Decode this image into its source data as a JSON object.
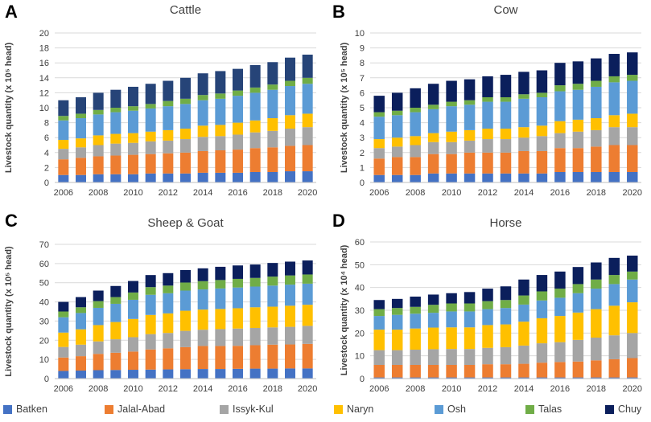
{
  "colors": {
    "Batken": "#4472c4",
    "Jalal-Abad": "#ed7d31",
    "Issyk-Kul": "#a5a5a5",
    "Naryn": "#ffc000",
    "Osh": "#5b9bd5",
    "Talas": "#70ad47",
    "Chuy": "#0b1f5c",
    "CattleChuy": "#264478"
  },
  "legend": {
    "items": [
      "Batken",
      "Jalal-Abad",
      "Issyk-Kul",
      "Naryn",
      "Osh",
      "Talas",
      "Chuy"
    ]
  },
  "chart_data": [
    {
      "panel": "A",
      "type": "bar",
      "stacked": true,
      "title": "Cattle",
      "ylabel": "Livestock quantity (x 10⁵ head)",
      "ylim": [
        0,
        20
      ],
      "yticks": [
        0,
        2,
        4,
        6,
        8,
        10,
        12,
        14,
        16,
        18,
        20
      ],
      "xtick_labels": [
        "2006",
        "2008",
        "2010",
        "2012",
        "2014",
        "2016",
        "2018",
        "2020"
      ],
      "categories": [
        "2006",
        "2007",
        "2008",
        "2009",
        "2010",
        "2011",
        "2012",
        "2013",
        "2014",
        "2015",
        "2016",
        "2017",
        "2018",
        "2019",
        "2020"
      ],
      "series": [
        {
          "name": "Batken",
          "values": [
            1.0,
            1.0,
            1.1,
            1.1,
            1.1,
            1.2,
            1.2,
            1.2,
            1.3,
            1.3,
            1.3,
            1.4,
            1.4,
            1.5,
            1.5
          ]
        },
        {
          "name": "Jalal-Abad",
          "values": [
            2.1,
            2.3,
            2.4,
            2.5,
            2.6,
            2.6,
            2.7,
            2.8,
            2.9,
            3.0,
            3.1,
            3.2,
            3.3,
            3.4,
            3.5
          ]
        },
        {
          "name": "Issyk-Kul",
          "values": [
            1.4,
            1.4,
            1.5,
            1.6,
            1.6,
            1.7,
            1.7,
            1.8,
            1.9,
            1.9,
            2.0,
            2.1,
            2.2,
            2.3,
            2.4
          ]
        },
        {
          "name": "Naryn",
          "values": [
            1.2,
            1.2,
            1.3,
            1.3,
            1.3,
            1.3,
            1.4,
            1.4,
            1.5,
            1.5,
            1.6,
            1.6,
            1.7,
            1.8,
            1.8
          ]
        },
        {
          "name": "Osh",
          "values": [
            2.6,
            2.7,
            2.8,
            2.9,
            3.0,
            3.1,
            3.2,
            3.3,
            3.4,
            3.5,
            3.6,
            3.7,
            3.8,
            3.9,
            4.0
          ]
        },
        {
          "name": "Talas",
          "values": [
            0.6,
            0.6,
            0.6,
            0.6,
            0.6,
            0.6,
            0.7,
            0.7,
            0.7,
            0.7,
            0.7,
            0.7,
            0.7,
            0.7,
            0.8
          ]
        },
        {
          "name": "Chuy",
          "values": [
            2.1,
            2.2,
            2.3,
            2.4,
            2.6,
            2.7,
            2.7,
            2.8,
            2.9,
            3.0,
            2.9,
            3.0,
            3.0,
            3.1,
            3.1
          ]
        }
      ]
    },
    {
      "panel": "B",
      "type": "bar",
      "stacked": true,
      "title": "Cow",
      "ylabel": "Livestock quantity (x 10⁵ head)",
      "ylim": [
        0,
        10
      ],
      "yticks": [
        0,
        1,
        2,
        3,
        4,
        5,
        6,
        7,
        8,
        9,
        10
      ],
      "xtick_labels": [
        "2006",
        "2008",
        "2010",
        "2012",
        "2014",
        "2016",
        "2018",
        "2020"
      ],
      "categories": [
        "2006",
        "2007",
        "2008",
        "2009",
        "2010",
        "2011",
        "2012",
        "2013",
        "2014",
        "2015",
        "2016",
        "2017",
        "2018",
        "2019",
        "2020"
      ],
      "series": [
        {
          "name": "Batken",
          "values": [
            0.5,
            0.5,
            0.5,
            0.6,
            0.6,
            0.6,
            0.6,
            0.6,
            0.6,
            0.6,
            0.7,
            0.7,
            0.7,
            0.7,
            0.7
          ]
        },
        {
          "name": "Jalal-Abad",
          "values": [
            1.1,
            1.2,
            1.2,
            1.3,
            1.3,
            1.4,
            1.4,
            1.4,
            1.5,
            1.5,
            1.6,
            1.6,
            1.7,
            1.8,
            1.8
          ]
        },
        {
          "name": "Issyk-Kul",
          "values": [
            0.7,
            0.7,
            0.8,
            0.8,
            0.8,
            0.8,
            0.9,
            0.9,
            0.9,
            1.0,
            1.0,
            1.1,
            1.1,
            1.2,
            1.2
          ]
        },
        {
          "name": "Naryn",
          "values": [
            0.6,
            0.6,
            0.6,
            0.6,
            0.7,
            0.7,
            0.7,
            0.7,
            0.7,
            0.7,
            0.8,
            0.8,
            0.8,
            0.8,
            0.9
          ]
        },
        {
          "name": "Osh",
          "values": [
            1.5,
            1.5,
            1.6,
            1.6,
            1.7,
            1.7,
            1.8,
            1.8,
            1.9,
            1.9,
            2.0,
            2.0,
            2.1,
            2.2,
            2.2
          ]
        },
        {
          "name": "Talas",
          "values": [
            0.3,
            0.3,
            0.3,
            0.3,
            0.3,
            0.3,
            0.3,
            0.3,
            0.3,
            0.3,
            0.4,
            0.4,
            0.4,
            0.4,
            0.4
          ]
        },
        {
          "name": "Chuy",
          "values": [
            1.1,
            1.2,
            1.3,
            1.4,
            1.4,
            1.4,
            1.4,
            1.5,
            1.5,
            1.5,
            1.5,
            1.5,
            1.5,
            1.5,
            1.5
          ]
        }
      ]
    },
    {
      "panel": "C",
      "type": "bar",
      "stacked": true,
      "title": "Sheep & Goat",
      "ylabel": "Livestock quantity (x 10⁵ head)",
      "ylim": [
        0,
        70
      ],
      "yticks": [
        0,
        10,
        20,
        30,
        40,
        50,
        60,
        70
      ],
      "xtick_labels": [
        "2006",
        "2008",
        "2010",
        "2012",
        "2014",
        "2016",
        "2018",
        "2020"
      ],
      "categories": [
        "2006",
        "2007",
        "2008",
        "2009",
        "2010",
        "2011",
        "2012",
        "2013",
        "2014",
        "2015",
        "2016",
        "2017",
        "2018",
        "2019",
        "2020"
      ],
      "series": [
        {
          "name": "Batken",
          "values": [
            4.0,
            4.2,
            4.4,
            4.5,
            4.6,
            4.7,
            4.8,
            4.9,
            5.0,
            5.0,
            5.1,
            5.2,
            5.2,
            5.3,
            5.3
          ]
        },
        {
          "name": "Jalal-Abad",
          "values": [
            7.0,
            7.5,
            8.5,
            9.0,
            9.5,
            10.5,
            11.0,
            11.5,
            12.0,
            12.0,
            12.0,
            12.2,
            12.5,
            12.5,
            12.8
          ]
        },
        {
          "name": "Issyk-Kul",
          "values": [
            5.5,
            6.0,
            6.5,
            7.0,
            7.5,
            8.0,
            8.0,
            8.5,
            8.5,
            8.8,
            9.0,
            9.0,
            9.0,
            9.2,
            9.4
          ]
        },
        {
          "name": "Naryn",
          "values": [
            7.5,
            8.0,
            8.5,
            9.0,
            9.5,
            10.0,
            10.2,
            10.5,
            10.5,
            10.5,
            10.6,
            10.8,
            10.8,
            11.0,
            11.0
          ]
        },
        {
          "name": "Osh",
          "values": [
            8.0,
            8.5,
            9.0,
            9.5,
            10.0,
            10.5,
            10.5,
            10.5,
            10.5,
            10.7,
            10.8,
            10.8,
            11.0,
            11.0,
            11.0
          ]
        },
        {
          "name": "Talas",
          "values": [
            3.0,
            3.0,
            3.5,
            3.5,
            3.8,
            4.0,
            4.0,
            4.2,
            4.3,
            4.4,
            4.5,
            4.5,
            4.7,
            4.8,
            4.8
          ]
        },
        {
          "name": "Chuy",
          "values": [
            5.0,
            5.3,
            5.5,
            5.8,
            6.0,
            6.3,
            6.5,
            6.5,
            6.7,
            6.9,
            7.0,
            7.0,
            7.1,
            7.2,
            7.3
          ]
        }
      ]
    },
    {
      "panel": "D",
      "type": "bar",
      "stacked": true,
      "title": "Horse",
      "ylabel": "Livestock quantity (x 10⁴ head)",
      "ylim": [
        0,
        60
      ],
      "yticks": [
        0,
        10,
        20,
        30,
        40,
        50,
        60
      ],
      "xtick_labels": [
        "2006",
        "2008",
        "2010",
        "2012",
        "2014",
        "2016",
        "2018",
        "2020"
      ],
      "categories": [
        "2006",
        "2007",
        "2008",
        "2009",
        "2010",
        "2011",
        "2012",
        "2013",
        "2014",
        "2015",
        "2016",
        "2017",
        "2018",
        "2019",
        "2020"
      ],
      "series": [
        {
          "name": "Batken",
          "values": [
            0.5,
            0.5,
            0.5,
            0.5,
            0.5,
            0.5,
            0.5,
            0.5,
            0.5,
            0.5,
            0.5,
            0.5,
            0.5,
            0.5,
            0.5
          ]
        },
        {
          "name": "Jalal-Abad",
          "values": [
            5.5,
            5.5,
            5.5,
            5.5,
            5.5,
            5.5,
            5.8,
            5.8,
            6.0,
            6.5,
            6.8,
            7.0,
            7.5,
            8.0,
            8.5
          ]
        },
        {
          "name": "Issyk-Kul",
          "values": [
            6.5,
            6.5,
            6.7,
            6.9,
            7.0,
            7.0,
            7.2,
            7.5,
            8.0,
            8.5,
            8.7,
            9.5,
            10.0,
            10.5,
            11.0
          ]
        },
        {
          "name": "Naryn",
          "values": [
            9.0,
            9.0,
            9.3,
            9.5,
            9.5,
            9.5,
            10.0,
            10.0,
            10.5,
            11.0,
            11.5,
            12.0,
            12.5,
            13.0,
            13.5
          ]
        },
        {
          "name": "Osh",
          "values": [
            6.0,
            6.5,
            6.5,
            6.5,
            7.0,
            7.0,
            7.0,
            7.2,
            7.5,
            7.8,
            8.0,
            8.5,
            9.0,
            9.5,
            10.0
          ]
        },
        {
          "name": "Talas",
          "values": [
            3.0,
            3.0,
            3.0,
            3.5,
            3.5,
            3.5,
            3.5,
            3.5,
            4.0,
            4.0,
            4.0,
            4.0,
            4.0,
            4.0,
            3.5
          ]
        },
        {
          "name": "Chuy",
          "values": [
            4.0,
            4.0,
            4.5,
            4.5,
            4.5,
            5.0,
            5.5,
            6.0,
            7.0,
            7.2,
            7.5,
            7.5,
            7.5,
            7.5,
            7.0
          ]
        }
      ]
    }
  ]
}
